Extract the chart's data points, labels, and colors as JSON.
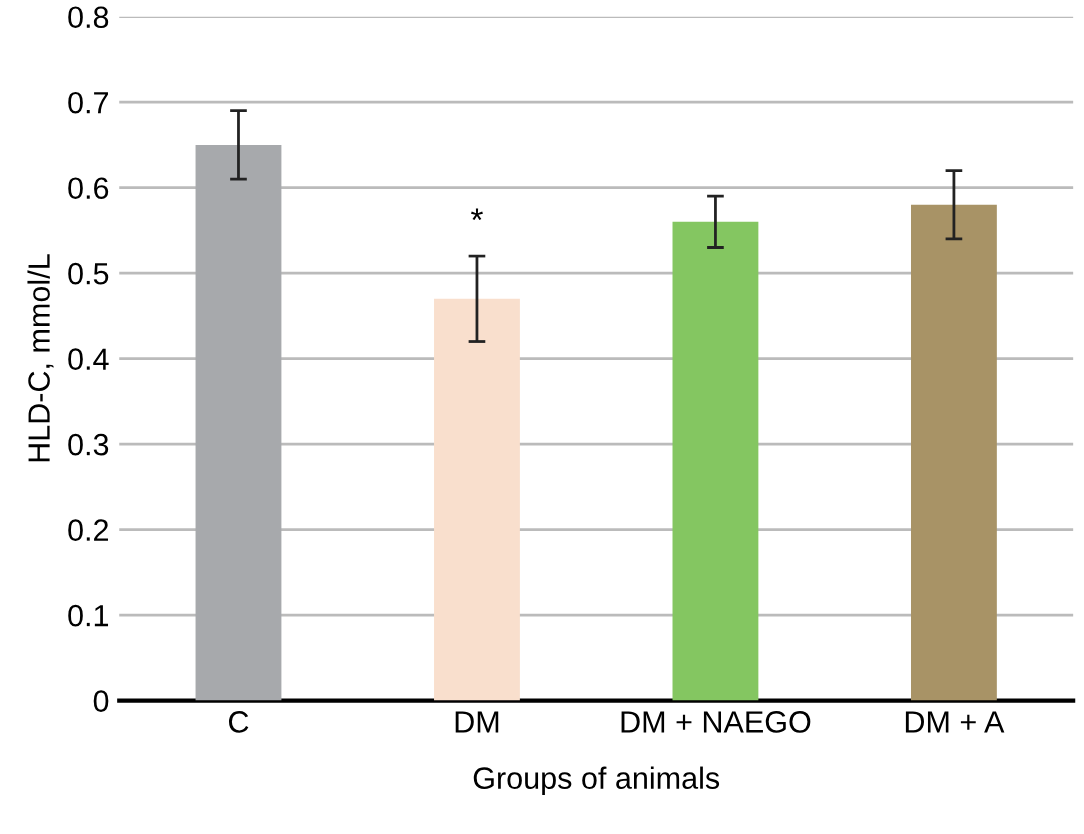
{
  "chart_data": {
    "type": "bar",
    "xlabel": "Groups of animals",
    "ylabel": "HLD-C, mmol/L",
    "categories": [
      "C",
      "DM",
      "DM + NAEGO",
      "DM + A"
    ],
    "values": [
      0.65,
      0.47,
      0.56,
      0.58
    ],
    "errors": [
      0.04,
      0.05,
      0.03,
      0.04
    ],
    "colors": [
      "#a7a9ac",
      "#f9dfcd",
      "#84c661",
      "#a89366"
    ],
    "ylim": [
      0,
      0.8
    ],
    "yticks": [
      {
        "value": 0,
        "label": "0"
      },
      0.1,
      0.2,
      0.3,
      0.4,
      0.5,
      0.6,
      0.7,
      0.8
    ],
    "grid": "y",
    "annotations": [
      "*"
    ]
  }
}
